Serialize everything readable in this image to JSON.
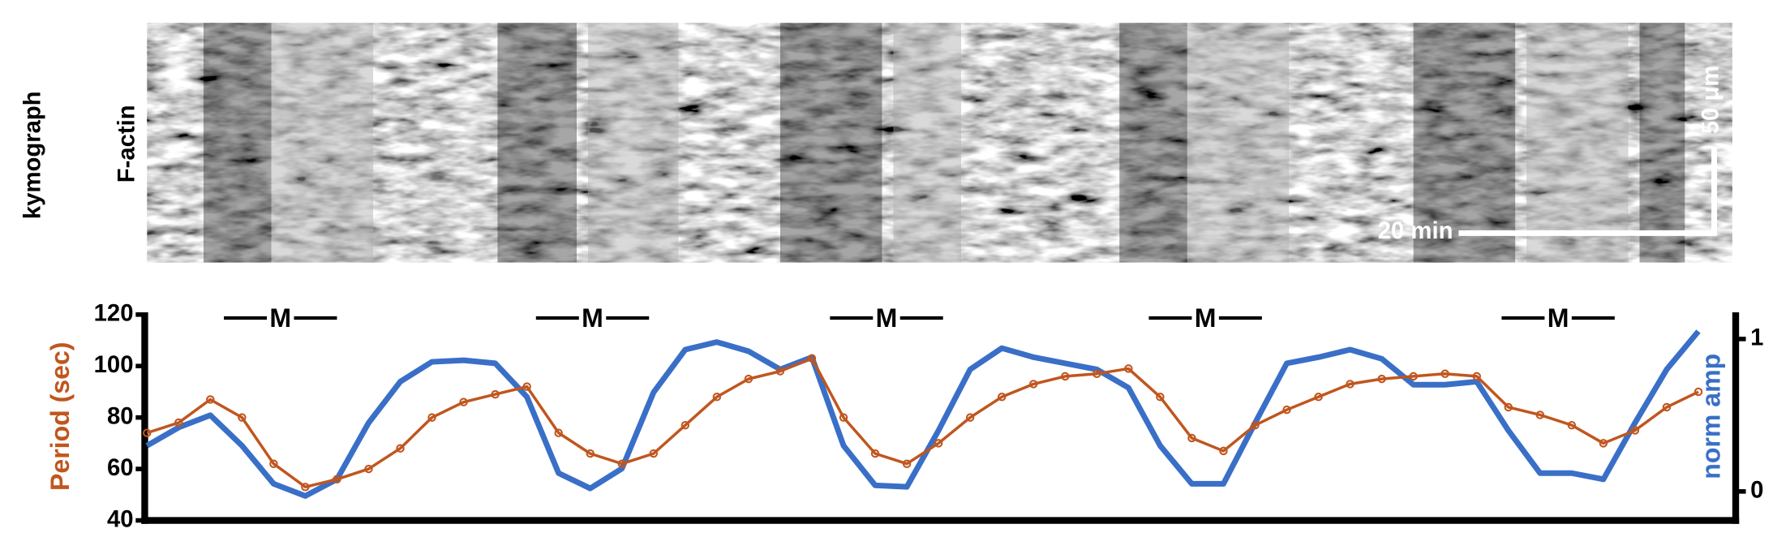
{
  "kymograph": {
    "row_label": "kymograph",
    "channel": "F-actin",
    "time_scale": "20 min",
    "length_scale": "50 μm"
  },
  "chart_data": {
    "type": "line",
    "ylabel": "Period (sec)",
    "y2label": "norm amp",
    "ylim": [
      40,
      120
    ],
    "yticks": [
      40,
      60,
      80,
      100,
      120
    ],
    "y2lim": [
      -0.19,
      1.16
    ],
    "y2ticks": [
      0,
      1
    ],
    "annotations": [
      "M",
      "M",
      "M",
      "M",
      "M"
    ],
    "series": [
      {
        "color": "#c0561e",
        "axis": "y",
        "values": [
          74,
          78,
          87,
          80,
          62,
          53,
          56,
          60,
          68,
          80,
          86,
          89,
          92,
          74,
          66,
          62,
          66,
          77,
          88,
          95,
          98,
          103,
          80,
          66,
          62,
          70,
          80,
          88,
          93,
          96,
          97,
          99,
          88,
          72,
          67,
          77,
          83,
          88,
          93,
          95,
          96,
          97,
          96,
          84,
          81,
          77,
          70,
          75,
          84,
          90
        ]
      },
      {
        "color": "#3a6fc8",
        "axis": "y2",
        "values": [
          0.3,
          0.42,
          0.5,
          0.3,
          0.05,
          -0.03,
          0.08,
          0.45,
          0.72,
          0.85,
          0.86,
          0.84,
          0.62,
          0.12,
          0.02,
          0.15,
          0.65,
          0.93,
          0.98,
          0.92,
          0.8,
          0.88,
          0.3,
          0.04,
          0.03,
          0.4,
          0.8,
          0.94,
          0.88,
          0.84,
          0.8,
          0.68,
          0.3,
          0.05,
          0.05,
          0.45,
          0.84,
          0.88,
          0.93,
          0.87,
          0.7,
          0.7,
          0.72,
          0.4,
          0.12,
          0.12,
          0.08,
          0.45,
          0.8,
          1.05
        ]
      }
    ]
  }
}
